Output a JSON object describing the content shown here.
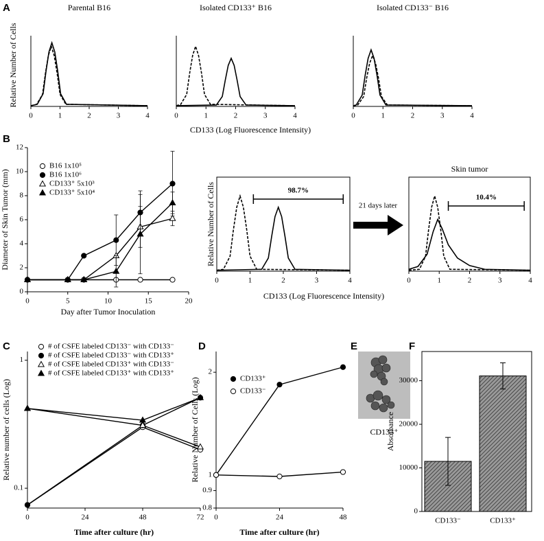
{
  "figure": {
    "panels": [
      "A",
      "B",
      "C",
      "D",
      "E",
      "F"
    ],
    "a_xlabel": "CD133 (Log Fluorescence Intensity)",
    "a_ylabel": "Relative Number of Cells",
    "b_xlabel": "CD133 (Log Fluorescence Intensity)",
    "arrow_label": "21 days later",
    "e_label": "CD133⁺"
  },
  "chart_data": [
    {
      "type": "line",
      "title": "Parental B16",
      "xlim": [
        0,
        4
      ],
      "xticks": [
        0,
        1,
        2,
        3,
        4
      ],
      "ylim": [
        0,
        100
      ],
      "series": [
        {
          "dash": true,
          "color": "#000",
          "x": [
            0,
            0.2,
            0.4,
            0.5,
            0.6,
            0.7,
            0.8,
            0.9,
            1.0,
            1.2,
            4
          ],
          "values": [
            1,
            3,
            17,
            47,
            72,
            85,
            72,
            47,
            17,
            3,
            1
          ]
        },
        {
          "dash": false,
          "color": "#000",
          "x": [
            0,
            0.22,
            0.42,
            0.52,
            0.62,
            0.72,
            0.82,
            0.92,
            1.02,
            1.22,
            4
          ],
          "values": [
            1,
            3,
            18,
            50,
            77,
            90,
            77,
            50,
            18,
            3,
            1
          ]
        }
      ]
    },
    {
      "type": "line",
      "title": "Isolated CD133⁺ B16",
      "xlim": [
        0,
        4
      ],
      "xticks": [
        0,
        1,
        2,
        3,
        4
      ],
      "ylim": [
        0,
        100
      ],
      "series": [
        {
          "dash": true,
          "color": "#000",
          "x": [
            0,
            0.15,
            0.35,
            0.45,
            0.55,
            0.65,
            0.75,
            0.85,
            0.95,
            1.15,
            4
          ],
          "values": [
            1,
            3,
            17,
            47,
            72,
            85,
            72,
            47,
            17,
            3,
            1
          ]
        },
        {
          "dash": false,
          "color": "#000",
          "x": [
            0,
            1.35,
            1.55,
            1.65,
            1.75,
            1.85,
            1.95,
            2.05,
            2.15,
            2.35,
            4
          ],
          "values": [
            1,
            2,
            14,
            37,
            58,
            68,
            58,
            37,
            14,
            2,
            1
          ]
        }
      ]
    },
    {
      "type": "line",
      "title": "Isolated CD133⁻ B16",
      "xlim": [
        0,
        4
      ],
      "xticks": [
        0,
        1,
        2,
        3,
        4
      ],
      "ylim": [
        0,
        100
      ],
      "series": [
        {
          "dash": false,
          "color": "#000",
          "x": [
            0,
            0.1,
            0.3,
            0.4,
            0.5,
            0.6,
            0.7,
            0.8,
            0.9,
            1.1,
            4
          ],
          "values": [
            1,
            2,
            16,
            44,
            68,
            80,
            68,
            44,
            16,
            2,
            1
          ]
        },
        {
          "dash": true,
          "color": "#000",
          "x": [
            0,
            0.15,
            0.35,
            0.45,
            0.55,
            0.65,
            0.75,
            0.85,
            0.95,
            1.15,
            4
          ],
          "values": [
            1,
            2,
            14,
            40,
            61,
            72,
            61,
            40,
            14,
            2,
            1
          ]
        }
      ]
    },
    {
      "type": "line",
      "xlabel": "Day after Tumor Inoculation",
      "ylabel": "Diameter of Skin Tumor (mm)",
      "x": [
        0,
        5,
        7,
        11,
        14,
        18
      ],
      "xlim": [
        0,
        20
      ],
      "xticks": [
        0,
        5,
        10,
        15,
        20
      ],
      "ylim": [
        0,
        12
      ],
      "yticks": [
        0,
        2,
        4,
        6,
        8,
        10,
        12
      ],
      "series": [
        {
          "name": "B16 1x10⁵",
          "marker": "circle-open",
          "color": "#000",
          "values": [
            1,
            1,
            1,
            1,
            1,
            1
          ]
        },
        {
          "name": "B16 1x10⁶",
          "marker": "circle",
          "color": "#000",
          "values": [
            1,
            1,
            3,
            4.3,
            6.6,
            9.0
          ],
          "errors": [
            0,
            0,
            0,
            2.1,
            1.8,
            2.7
          ]
        },
        {
          "name": "CD133⁺ 5x10³",
          "marker": "triangle-open",
          "color": "#000",
          "values": [
            1,
            1,
            1,
            3.0,
            5.4,
            6.1
          ],
          "errors": [
            0,
            0,
            0,
            0,
            1.7,
            0.6
          ]
        },
        {
          "name": "CD133⁺ 5x10⁴",
          "marker": "triangle",
          "color": "#000",
          "values": [
            1,
            1,
            1,
            1.7,
            4.8,
            7.4
          ],
          "errors": [
            0,
            0,
            0,
            1.3,
            3.3,
            0.9
          ]
        }
      ]
    },
    {
      "type": "line",
      "ylabel": "Relative Number of Cells",
      "xlim": [
        0,
        4
      ],
      "xticks": [
        0,
        1,
        2,
        3,
        4
      ],
      "ylim": [
        0,
        100
      ],
      "frame": true,
      "gate": {
        "label": "98.7%",
        "range": [
          1.1,
          3.8
        ]
      },
      "series": [
        {
          "dash": true,
          "color": "#000",
          "x": [
            0,
            0.2,
            0.4,
            0.5,
            0.6,
            0.7,
            0.8,
            0.9,
            1.0,
            1.2,
            4
          ],
          "values": [
            1,
            2,
            16,
            44,
            68,
            80,
            68,
            44,
            16,
            2,
            1
          ]
        },
        {
          "dash": false,
          "color": "#000",
          "x": [
            0,
            1.35,
            1.55,
            1.65,
            1.75,
            1.85,
            1.95,
            2.05,
            2.15,
            2.35,
            4
          ],
          "values": [
            1,
            2,
            14,
            37,
            58,
            68,
            58,
            37,
            14,
            2,
            1
          ]
        }
      ]
    },
    {
      "type": "line",
      "title": "Skin tumor",
      "xlim": [
        0,
        4
      ],
      "xticks": [
        0,
        1,
        2,
        3,
        4
      ],
      "ylim": [
        0,
        100
      ],
      "frame": true,
      "gate": {
        "label": "10.4%",
        "range": [
          1.3,
          3.8
        ]
      },
      "series": [
        {
          "dash": true,
          "color": "#000",
          "x": [
            0,
            0.35,
            0.55,
            0.65,
            0.75,
            0.85,
            0.95,
            1.05,
            1.15,
            1.35,
            4
          ],
          "values": [
            1,
            2,
            16,
            44,
            68,
            80,
            68,
            44,
            16,
            2,
            1
          ]
        },
        {
          "dash": false,
          "color": "#000",
          "x": [
            0,
            0.3,
            0.6,
            0.8,
            0.95,
            1.1,
            1.3,
            1.6,
            2.0,
            2.5,
            4
          ],
          "values": [
            2,
            5,
            18,
            42,
            55,
            45,
            28,
            14,
            6,
            2,
            1
          ]
        }
      ]
    },
    {
      "type": "line",
      "xlabel": "Time after culture (hr)",
      "ylabel": "Relative number of cells (Log)",
      "ylog": true,
      "x": [
        0,
        48,
        72
      ],
      "xlim": [
        0,
        72
      ],
      "xticks": [
        0,
        24,
        48,
        72
      ],
      "ylim": [
        0.07,
        1.17
      ],
      "yticks": [
        0.1,
        1
      ],
      "series": [
        {
          "name": "# of CSFE labeled CD133⁻ with CD133⁻",
          "marker": "circle-open",
          "color": "#000",
          "values": [
            0.074,
            0.3,
            0.2
          ]
        },
        {
          "name": "# of CSFE labeled CD133⁻ with CD133⁺",
          "marker": "circle",
          "color": "#000",
          "values": [
            0.074,
            0.31,
            0.51
          ]
        },
        {
          "name": "# of CSFE labeled CD133⁺ with CD133⁻",
          "marker": "triangle-open",
          "color": "#000",
          "values": [
            0.42,
            0.31,
            0.21
          ]
        },
        {
          "name": "# of CSFE labeled CD133⁺ with CD133⁺",
          "marker": "triangle",
          "color": "#000",
          "values": [
            0.42,
            0.34,
            0.51
          ]
        }
      ]
    },
    {
      "type": "line",
      "xlabel": "Time after culture (hr)",
      "ylabel": "Relative Number of Cells (Log)",
      "ylog": true,
      "x": [
        0,
        24,
        48
      ],
      "xlim": [
        0,
        48
      ],
      "xticks": [
        0,
        24,
        48
      ],
      "ylim": [
        0.8,
        2.3
      ],
      "yticks": [
        0.8,
        0.9,
        1,
        2
      ],
      "series": [
        {
          "name": "CD133⁺",
          "marker": "circle",
          "color": "#000",
          "values": [
            1,
            1.84,
            2.07
          ]
        },
        {
          "name": "CD133⁻",
          "marker": "circle-open",
          "color": "#000",
          "values": [
            1,
            0.99,
            1.02
          ]
        }
      ]
    },
    {
      "type": "bar",
      "ylabel": "Absorbance",
      "categories": [
        "CD133⁻",
        "CD133⁺"
      ],
      "values": [
        11500,
        31100
      ],
      "errors": [
        5500,
        3000
      ],
      "ylim": [
        0,
        36700
      ],
      "yticks": [
        0,
        10000,
        20000,
        30000
      ],
      "frame": true,
      "color": "#777"
    }
  ]
}
